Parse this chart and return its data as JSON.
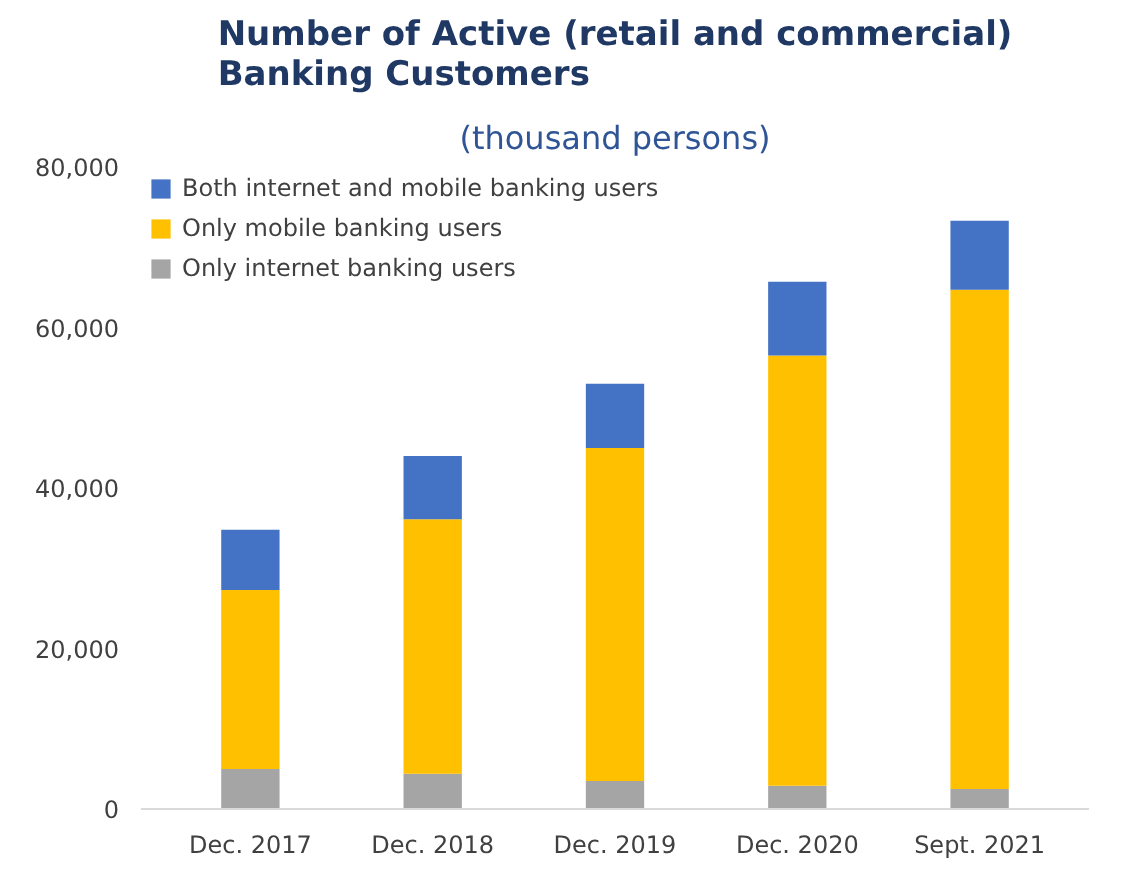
{
  "chart_data": {
    "type": "bar",
    "stacked": true,
    "title": "Number of Active (retail and commercial) Banking Customers",
    "subtitle": "(thousand persons)",
    "categories": [
      "Dec. 2017",
      "Dec. 2018",
      "Dec. 2019",
      "Dec. 2020",
      "Sept. 2021"
    ],
    "series": [
      {
        "name": "Only internet banking users",
        "color": "#a5a5a5",
        "values": [
          5000,
          4400,
          3500,
          2900,
          2500
        ]
      },
      {
        "name": "Only mobile banking users",
        "color": "#ffc000",
        "values": [
          22300,
          31700,
          41500,
          53600,
          62200
        ]
      },
      {
        "name": "Both internet and mobile banking users",
        "color": "#4472c4",
        "values": [
          7500,
          7900,
          8000,
          9200,
          8600
        ]
      }
    ],
    "ylim": [
      0,
      80000
    ],
    "yticks": [
      {
        "value": 0,
        "label": "0"
      },
      {
        "value": 20000,
        "label": "20,000"
      },
      {
        "value": 40000,
        "label": "40,000"
      },
      {
        "value": 60000,
        "label": "60,000"
      },
      {
        "value": 80000,
        "label": "80,000"
      }
    ],
    "grid": false,
    "legend": "top left"
  }
}
